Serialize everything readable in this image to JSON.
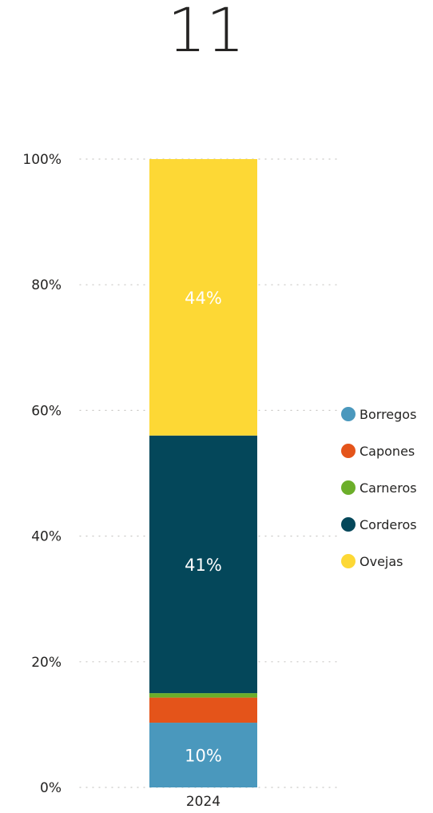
{
  "card": {
    "value": "11"
  },
  "chart_data": {
    "type": "bar",
    "stacked": true,
    "percent": true,
    "categories": [
      "2024"
    ],
    "series": [
      {
        "name": "Borregos",
        "values": [
          10.3
        ],
        "color": "#4A98BD",
        "label": "10%"
      },
      {
        "name": "Capones",
        "values": [
          4.0
        ],
        "color": "#E4541A",
        "label": ""
      },
      {
        "name": "Carneros",
        "values": [
          0.7
        ],
        "color": "#6CAE2A",
        "label": ""
      },
      {
        "name": "Corderos",
        "values": [
          41.0
        ],
        "color": "#04475A",
        "label": "41%"
      },
      {
        "name": "Ovejas",
        "values": [
          44.0
        ],
        "color": "#FDD835",
        "label": "44%"
      }
    ],
    "y_ticks": [
      "0%",
      "20%",
      "40%",
      "60%",
      "80%",
      "100%"
    ],
    "ylim": [
      0,
      100
    ],
    "grid": true,
    "legend_position": "right"
  }
}
